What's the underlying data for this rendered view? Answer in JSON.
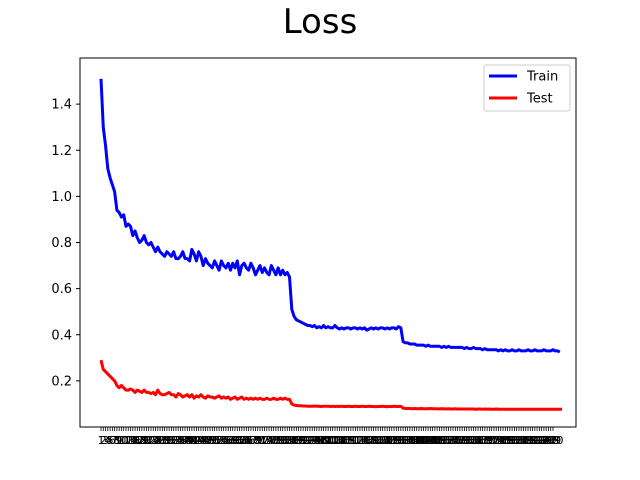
{
  "chart_data": {
    "type": "line",
    "title": "Loss",
    "xlabel": "",
    "ylabel": "",
    "x_start": 1,
    "x_end": 200,
    "ylim": [
      0.0,
      1.6
    ],
    "yticks": [
      0.2,
      0.4,
      0.6,
      0.8,
      1.0,
      1.2,
      1.4
    ],
    "grid": false,
    "legend_position": "top-right",
    "series": [
      {
        "name": "Train",
        "color": "#0000ff",
        "values": [
          1.51,
          1.3,
          1.22,
          1.12,
          1.08,
          1.05,
          1.02,
          0.94,
          0.93,
          0.91,
          0.92,
          0.87,
          0.88,
          0.87,
          0.83,
          0.85,
          0.82,
          0.8,
          0.81,
          0.83,
          0.8,
          0.79,
          0.8,
          0.78,
          0.76,
          0.78,
          0.76,
          0.75,
          0.74,
          0.76,
          0.75,
          0.74,
          0.76,
          0.73,
          0.73,
          0.74,
          0.76,
          0.73,
          0.73,
          0.72,
          0.77,
          0.75,
          0.72,
          0.76,
          0.74,
          0.7,
          0.73,
          0.71,
          0.7,
          0.69,
          0.72,
          0.7,
          0.68,
          0.72,
          0.7,
          0.69,
          0.71,
          0.68,
          0.71,
          0.69,
          0.72,
          0.66,
          0.7,
          0.71,
          0.69,
          0.68,
          0.71,
          0.69,
          0.66,
          0.68,
          0.7,
          0.67,
          0.69,
          0.67,
          0.66,
          0.7,
          0.68,
          0.66,
          0.69,
          0.66,
          0.68,
          0.66,
          0.67,
          0.65,
          0.51,
          0.48,
          0.465,
          0.46,
          0.455,
          0.45,
          0.445,
          0.44,
          0.44,
          0.435,
          0.44,
          0.43,
          0.435,
          0.43,
          0.44,
          0.43,
          0.435,
          0.43,
          0.43,
          0.44,
          0.43,
          0.425,
          0.43,
          0.425,
          0.43,
          0.43,
          0.425,
          0.43,
          0.43,
          0.425,
          0.43,
          0.425,
          0.43,
          0.42,
          0.425,
          0.43,
          0.425,
          0.43,
          0.425,
          0.43,
          0.43,
          0.425,
          0.43,
          0.425,
          0.43,
          0.43,
          0.425,
          0.435,
          0.43,
          0.37,
          0.365,
          0.365,
          0.36,
          0.36,
          0.36,
          0.355,
          0.355,
          0.355,
          0.355,
          0.35,
          0.355,
          0.35,
          0.35,
          0.35,
          0.35,
          0.35,
          0.345,
          0.35,
          0.345,
          0.35,
          0.345,
          0.345,
          0.345,
          0.345,
          0.345,
          0.345,
          0.34,
          0.345,
          0.34,
          0.34,
          0.345,
          0.34,
          0.34,
          0.34,
          0.335,
          0.34,
          0.335,
          0.335,
          0.335,
          0.335,
          0.335,
          0.33,
          0.335,
          0.33,
          0.335,
          0.33,
          0.33,
          0.335,
          0.33,
          0.33,
          0.335,
          0.33,
          0.33,
          0.33,
          0.335,
          0.33,
          0.33,
          0.335,
          0.33,
          0.33,
          0.33,
          0.335,
          0.33,
          0.33,
          0.33,
          0.335,
          0.33,
          0.33,
          0.325
        ]
      },
      {
        "name": "Test",
        "color": "#ff0000",
        "values": [
          0.29,
          0.25,
          0.24,
          0.23,
          0.22,
          0.21,
          0.2,
          0.18,
          0.17,
          0.18,
          0.17,
          0.16,
          0.16,
          0.165,
          0.16,
          0.15,
          0.16,
          0.155,
          0.15,
          0.16,
          0.15,
          0.15,
          0.145,
          0.15,
          0.14,
          0.16,
          0.145,
          0.14,
          0.14,
          0.145,
          0.15,
          0.14,
          0.14,
          0.13,
          0.145,
          0.14,
          0.13,
          0.135,
          0.14,
          0.13,
          0.14,
          0.125,
          0.135,
          0.13,
          0.14,
          0.13,
          0.125,
          0.135,
          0.13,
          0.13,
          0.125,
          0.13,
          0.135,
          0.125,
          0.13,
          0.125,
          0.13,
          0.12,
          0.125,
          0.13,
          0.12,
          0.125,
          0.13,
          0.12,
          0.125,
          0.12,
          0.125,
          0.12,
          0.125,
          0.12,
          0.125,
          0.12,
          0.12,
          0.125,
          0.12,
          0.12,
          0.125,
          0.12,
          0.12,
          0.125,
          0.12,
          0.125,
          0.12,
          0.12,
          0.1,
          0.095,
          0.093,
          0.092,
          0.092,
          0.091,
          0.091,
          0.09,
          0.09,
          0.09,
          0.091,
          0.09,
          0.09,
          0.089,
          0.09,
          0.09,
          0.09,
          0.089,
          0.09,
          0.089,
          0.09,
          0.089,
          0.09,
          0.089,
          0.089,
          0.09,
          0.089,
          0.089,
          0.09,
          0.089,
          0.089,
          0.09,
          0.089,
          0.089,
          0.09,
          0.089,
          0.089,
          0.088,
          0.089,
          0.089,
          0.09,
          0.089,
          0.088,
          0.089,
          0.089,
          0.09,
          0.089,
          0.089,
          0.09,
          0.082,
          0.08,
          0.08,
          0.08,
          0.079,
          0.08,
          0.079,
          0.079,
          0.08,
          0.079,
          0.079,
          0.079,
          0.08,
          0.079,
          0.079,
          0.079,
          0.078,
          0.079,
          0.079,
          0.078,
          0.079,
          0.078,
          0.078,
          0.079,
          0.078,
          0.078,
          0.078,
          0.078,
          0.078,
          0.078,
          0.078,
          0.078,
          0.077,
          0.078,
          0.078,
          0.077,
          0.078,
          0.077,
          0.078,
          0.077,
          0.077,
          0.078,
          0.077,
          0.077,
          0.077,
          0.077,
          0.077,
          0.077,
          0.077,
          0.077,
          0.077,
          0.077,
          0.077,
          0.077,
          0.077,
          0.077,
          0.077,
          0.077,
          0.077,
          0.077,
          0.077,
          0.077,
          0.077,
          0.077,
          0.077,
          0.077,
          0.077,
          0.077,
          0.077,
          0.077,
          0.077
        ]
      }
    ]
  }
}
